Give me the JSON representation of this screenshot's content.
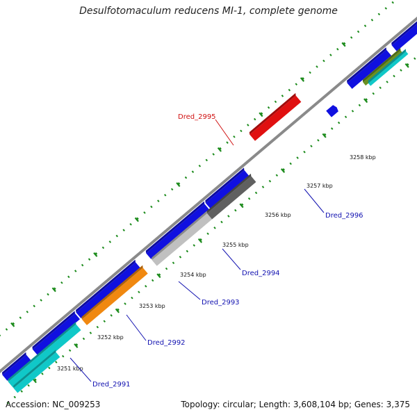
{
  "title": "Desulfotomaculum reducens MI-1, complete genome",
  "footer": {
    "accession": "Accession: NC_009253",
    "summary": "Topology: circular; Length: 3,608,104 bp; Genes: 3,375"
  },
  "colors": {
    "strand_forward": "#1010e0",
    "strand_reverse": "#10c8c8",
    "highlight": "#e01010",
    "orange": "#f08810",
    "light_gray": "#c0c0c0",
    "dark_gray": "#606060",
    "olive": "#6a9020",
    "backbone": "#8a8a8a",
    "ticks": "#1a8a1a",
    "label_black": "#111111",
    "label_blue": "#1010b0",
    "label_red": "#d01010"
  },
  "scale": {
    "ticks_kbp": [
      {
        "kbp": 3251,
        "label": "3251 kbp"
      },
      {
        "kbp": 3252,
        "label": "3252 kbp"
      },
      {
        "kbp": 3253,
        "label": "3253 kbp"
      },
      {
        "kbp": 3254,
        "label": "3254 kbp"
      },
      {
        "kbp": 3255,
        "label": "3255 kbp"
      },
      {
        "kbp": 3256,
        "label": "3256 kbp"
      },
      {
        "kbp": 3257,
        "label": "3257 kbp"
      },
      {
        "kbp": 3258,
        "label": "3258 kbp"
      }
    ]
  },
  "gene_labels": [
    {
      "name": "Dred_2991",
      "color": "label_blue"
    },
    {
      "name": "Dred_2992",
      "color": "label_blue"
    },
    {
      "name": "Dred_2993",
      "color": "label_blue"
    },
    {
      "name": "Dred_2994",
      "color": "label_blue"
    },
    {
      "name": "Dred_2995",
      "color": "label_red"
    },
    {
      "name": "Dred_2996",
      "color": "label_blue"
    }
  ]
}
